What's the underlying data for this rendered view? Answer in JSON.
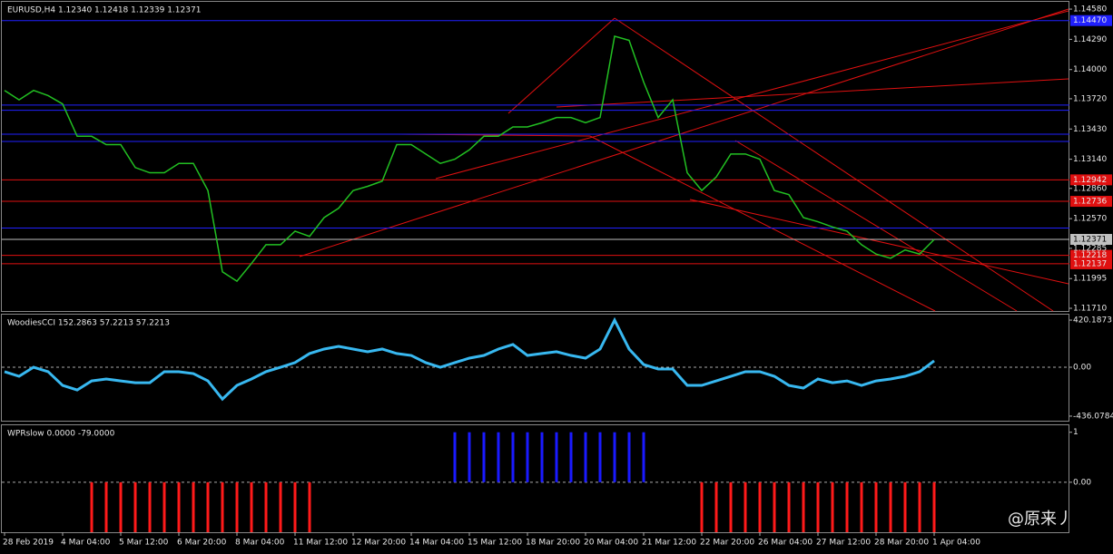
{
  "chart_data": [
    {
      "type": "line",
      "title": "EURUSD,H4  1.12340 1.12418 1.12339 1.12371",
      "color": "#22c022",
      "values": [
        1.138,
        1.1371,
        1.138,
        1.1375,
        1.1367,
        1.1336,
        1.1336,
        1.1328,
        1.1328,
        1.1306,
        1.1301,
        1.1301,
        1.131,
        1.131,
        1.1284,
        1.1206,
        1.1197,
        1.1214,
        1.1232,
        1.1232,
        1.1245,
        1.124,
        1.1258,
        1.1267,
        1.1284,
        1.1288,
        1.1293,
        1.1328,
        1.1328,
        1.1319,
        1.131,
        1.1314,
        1.1323,
        1.1336,
        1.1336,
        1.1345,
        1.1345,
        1.1349,
        1.1354,
        1.1354,
        1.1349,
        1.1354,
        1.1432,
        1.1428,
        1.1388,
        1.1354,
        1.1371,
        1.1301,
        1.1284,
        1.1297,
        1.1319,
        1.1319,
        1.1314,
        1.1284,
        1.128,
        1.1258,
        1.1254,
        1.1249,
        1.1245,
        1.1232,
        1.1223,
        1.1219,
        1.1227,
        1.1223,
        1.1237
      ],
      "ylim": [
        1.11684,
        1.1465
      ],
      "yticks": [
        {
          "value": 1.1458,
          "label": "1.14580"
        },
        {
          "value": 1.1429,
          "label": "1.14290"
        },
        {
          "value": 1.14,
          "label": "1.14000"
        },
        {
          "value": 1.1372,
          "label": "1.13720"
        },
        {
          "value": 1.1343,
          "label": "1.13430"
        },
        {
          "value": 1.1314,
          "label": "1.13140"
        },
        {
          "value": 1.1286,
          "label": "1.12860"
        },
        {
          "value": 1.1257,
          "label": "1.12570"
        },
        {
          "value": 1.12285,
          "label": "1.12285"
        },
        {
          "value": 1.11995,
          "label": "1.11995"
        },
        {
          "value": 1.1171,
          "label": "1.11710"
        }
      ],
      "levels": [
        {
          "value": 1.1447,
          "color": "#2020ff",
          "label": "1.14470"
        },
        {
          "value": 1.1366,
          "color": "#2020ff"
        },
        {
          "value": 1.1361,
          "color": "#2020ff"
        },
        {
          "value": 1.1338,
          "color": "#2020ff"
        },
        {
          "value": 1.1331,
          "color": "#2020ff"
        },
        {
          "value": 1.12942,
          "color": "#e01010",
          "label": "1.12942"
        },
        {
          "value": 1.12736,
          "color": "#e01010",
          "label": "1.12736"
        },
        {
          "value": 1.1248,
          "color": "#2020ff"
        },
        {
          "value": 1.12371,
          "color": "#c0c0c0",
          "label": "1.12371"
        },
        {
          "value": 1.12218,
          "color": "#e01010",
          "label": "1.12218"
        },
        {
          "value": 1.12137,
          "color": "#e01010",
          "label": "1.12137"
        }
      ]
    },
    {
      "type": "line",
      "title": "WoodiesCCI 152.2863 57.2213 57.2213",
      "color": "#38b8f0",
      "zero_line": true,
      "values": [
        -40,
        -81,
        0,
        -40,
        -162,
        -203,
        -122,
        -105,
        -122,
        -138,
        -138,
        -40,
        -40,
        -57,
        -122,
        -284,
        -162,
        -105,
        -40,
        0,
        41,
        122,
        162,
        186,
        162,
        138,
        162,
        122,
        105,
        41,
        0,
        41,
        81,
        105,
        162,
        203,
        105,
        122,
        138,
        105,
        81,
        162,
        420,
        162,
        24,
        -16,
        -16,
        -162,
        -162,
        -122,
        -81,
        -40,
        -40,
        -81,
        -162,
        -186,
        -105,
        -138,
        -122,
        -162,
        -122,
        -105,
        -81,
        -40,
        57.2213
      ],
      "ylim": [
        -477,
        469
      ],
      "yticks": [
        420.1873,
        {
          "value": 0,
          "label": "0.00"
        },
        -436.0784
      ]
    },
    {
      "type": "bar",
      "title": "WPRslow 0.0000 -79.0000",
      "color_positive": "#1a1aff",
      "color_negative": "#ff1a1a",
      "zero_line": true,
      "categories": [
        "28 Feb 2019",
        null,
        null,
        null,
        "4 Mar 04:00",
        null,
        null,
        null,
        "5 Mar 12:00",
        null,
        null,
        null,
        "6 Mar 20:00",
        null,
        null,
        null,
        "8 Mar 04:00",
        null,
        null,
        null,
        "11 Mar 12:00",
        null,
        null,
        null,
        "12 Mar 20:00",
        null,
        null,
        null,
        "14 Mar 04:00",
        null,
        null,
        null,
        "15 Mar 12:00",
        null,
        null,
        null,
        "18 Mar 20:00",
        null,
        null,
        null,
        "20 Mar 04:00",
        null,
        null,
        null,
        "21 Mar 12:00",
        null,
        null,
        null,
        "22 Mar 20:00",
        null,
        null,
        null,
        "26 Mar 04:00",
        null,
        null,
        null,
        "27 Mar 12:00",
        null,
        null,
        null,
        "28 Mar 20:00",
        null,
        null,
        null,
        "1 Apr 04:00"
      ],
      "values": [
        0,
        0,
        0,
        0,
        0,
        0,
        -1,
        -1,
        -1,
        -1,
        -1,
        -1,
        -1,
        -1,
        -1,
        -1,
        -1,
        -1,
        -1,
        -1,
        -1,
        -1,
        0,
        0,
        0,
        0,
        0,
        0,
        0,
        0,
        0,
        1,
        1,
        1,
        1,
        1,
        1,
        1,
        1,
        1,
        1,
        1,
        1,
        1,
        1,
        0,
        0,
        0,
        -1,
        -1,
        -1,
        -1,
        -1,
        -1,
        -1,
        -1,
        -1,
        -1,
        -1,
        -1,
        -1,
        -1,
        -1,
        -1,
        -1
      ],
      "ylim": [
        -1,
        1.14
      ],
      "yticks": [
        1,
        {
          "value": 0,
          "label": "0.00"
        }
      ]
    }
  ],
  "watermark": "@原来丿"
}
